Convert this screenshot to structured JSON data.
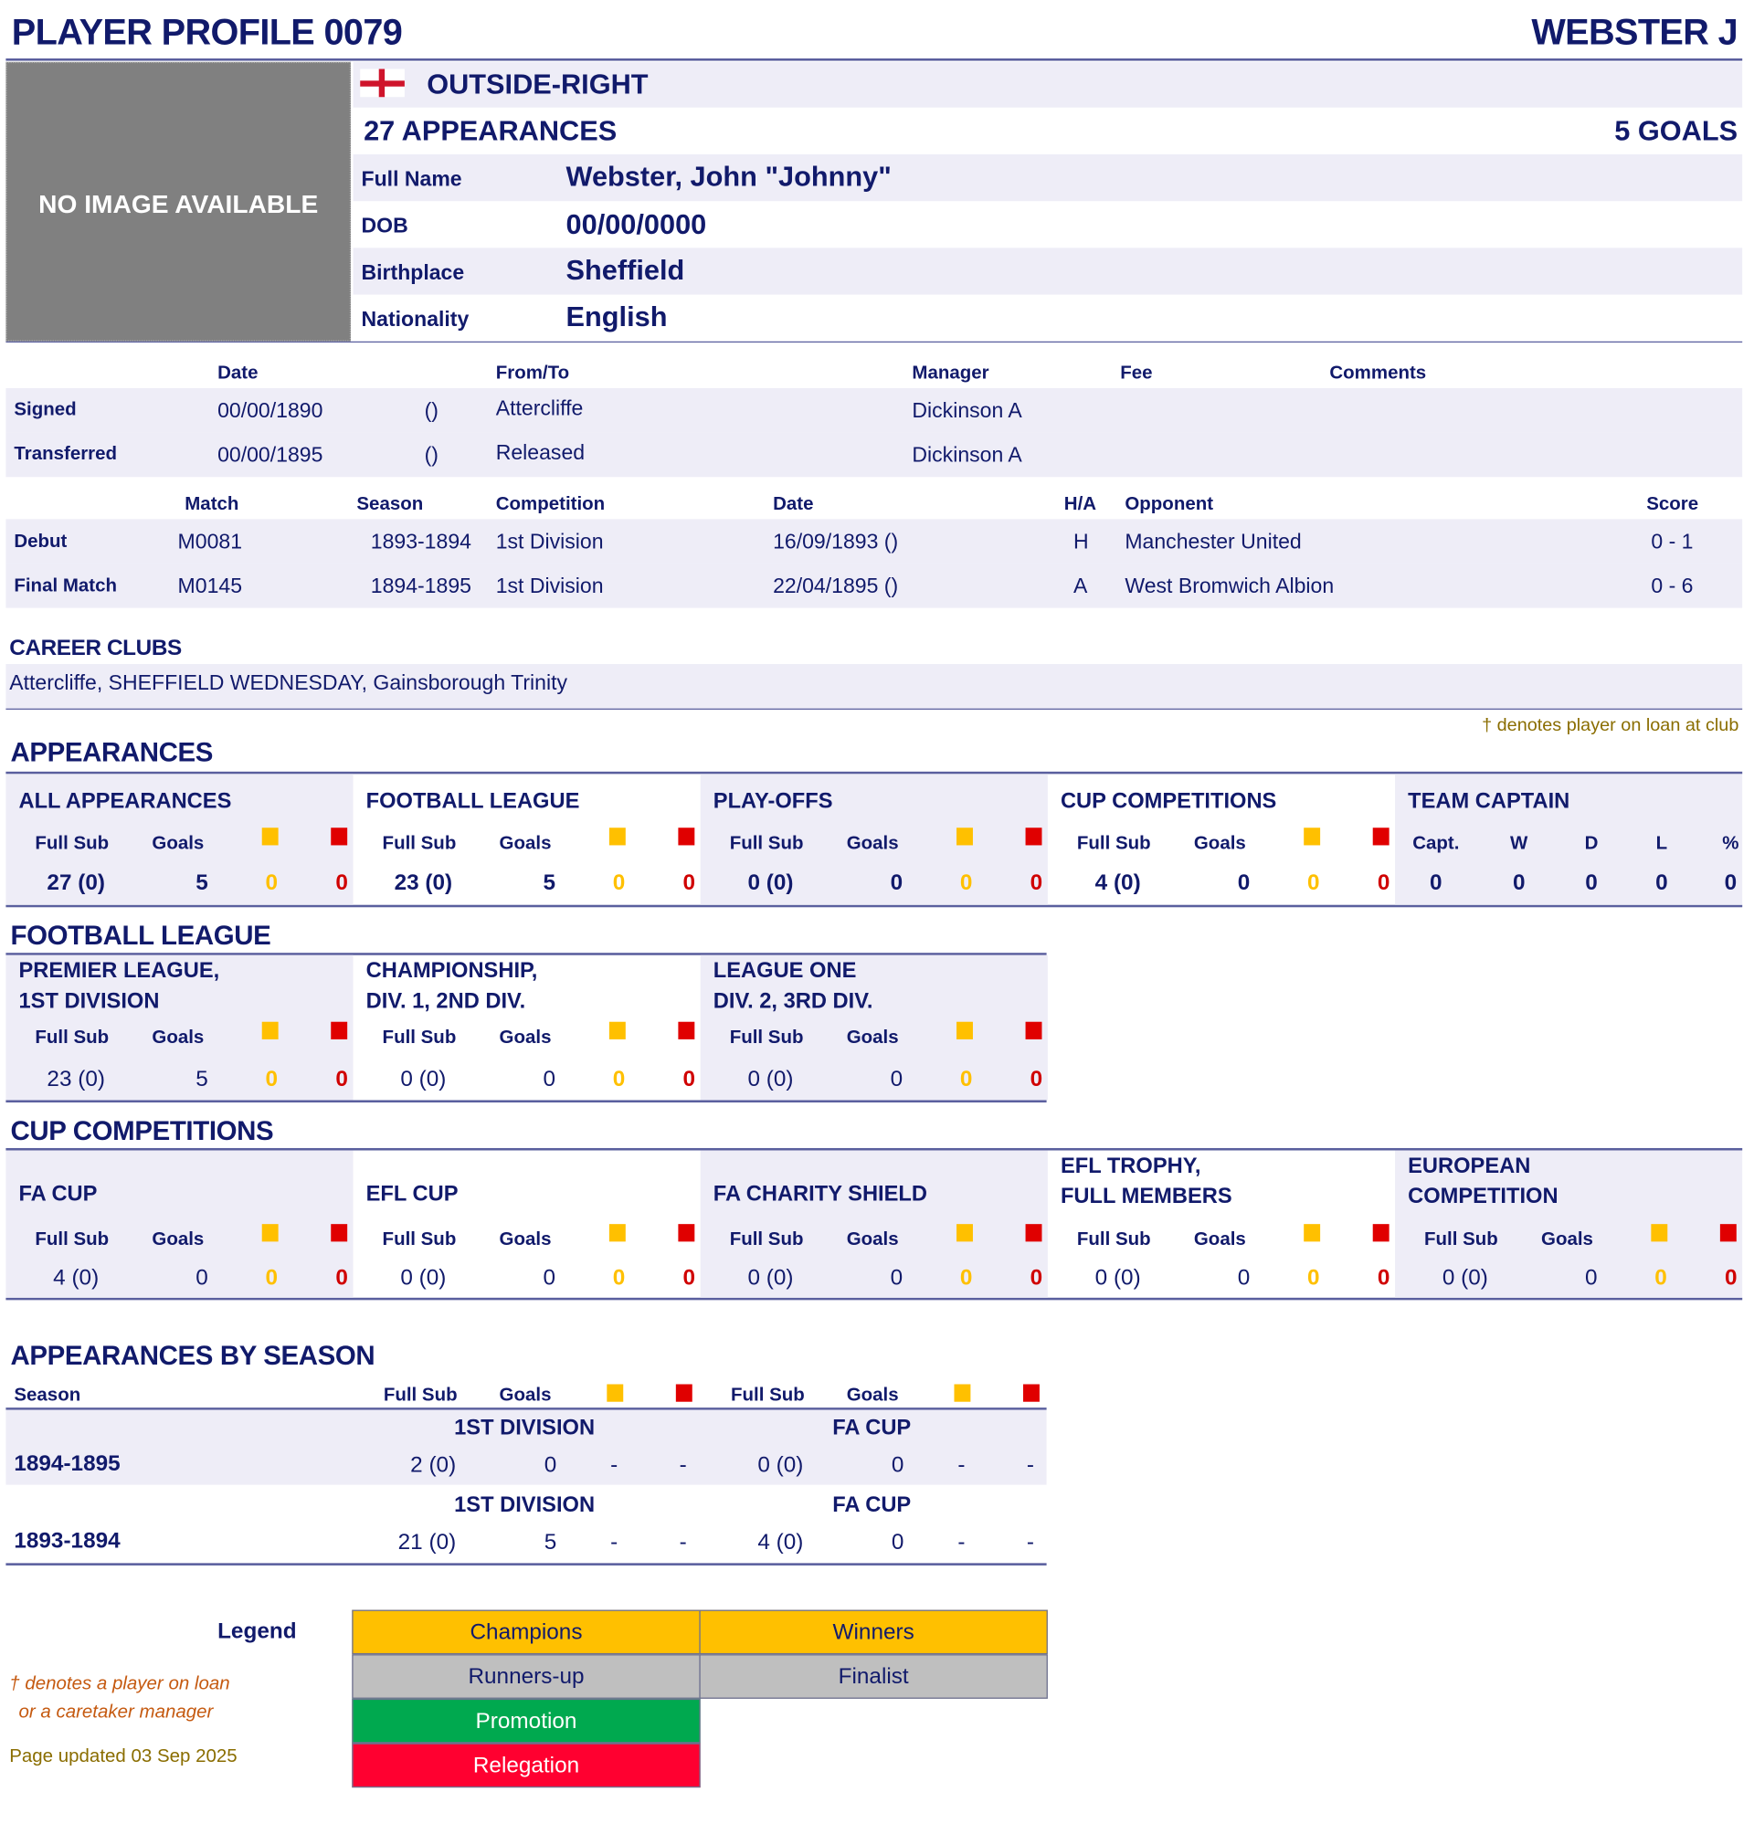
{
  "header": {
    "title": "PLAYER PROFILE 0079",
    "name": "WEBSTER J"
  },
  "profile": {
    "no_image": "NO IMAGE AVAILABLE",
    "flag_icon": "england-flag-icon",
    "position": "OUTSIDE-RIGHT",
    "appearances": "27 APPEARANCES",
    "goals": "5 GOALS",
    "fields": [
      {
        "label": "Full Name",
        "value": "Webster, John \"Johnny\""
      },
      {
        "label": "DOB",
        "value": "00/00/0000"
      },
      {
        "label": "Birthplace",
        "value": "Sheffield"
      },
      {
        "label": "Nationality",
        "value": "English"
      }
    ]
  },
  "transfers": {
    "headers": {
      "date": "Date",
      "club": "From/To",
      "manager": "Manager",
      "fee": "Fee",
      "comments": "Comments"
    },
    "rows": [
      {
        "label": "Signed",
        "date": "00/00/1890",
        "note": "()",
        "club": "Attercliffe",
        "manager": "Dickinson A",
        "fee": "",
        "comments": ""
      },
      {
        "label": "Transferred",
        "date": "00/00/1895",
        "note": "()",
        "club": "Released",
        "manager": "Dickinson A",
        "fee": "",
        "comments": ""
      }
    ]
  },
  "matches": {
    "headers": {
      "match": "Match",
      "season": "Season",
      "competition": "Competition",
      "date": "Date",
      "ha": "H/A",
      "opponent": "Opponent",
      "score": "Score"
    },
    "rows": [
      {
        "label": "Debut",
        "match": "M0081",
        "season": "1893-1894",
        "competition": "1st Division",
        "date": "16/09/1893 ()",
        "ha": "H",
        "opponent": "Manchester United",
        "score": "0 - 1"
      },
      {
        "label": "Final Match",
        "match": "M0145",
        "season": "1894-1895",
        "competition": "1st Division",
        "date": "22/04/1895 ()",
        "ha": "A",
        "opponent": "West Bromwich Albion",
        "score": "0 - 6"
      }
    ]
  },
  "career": {
    "heading": "CAREER CLUBS",
    "clubs": "Attercliffe, SHEFFIELD WEDNESDAY, Gainsborough Trinity",
    "loan_note": "† denotes player on loan at club"
  },
  "stat_headers": {
    "full_sub": "Full Sub",
    "goals": "Goals"
  },
  "colors": {
    "navy": "#111a6b",
    "yellow_card": "#ffc000",
    "red_card": "#e00000",
    "band": "#eeedf7"
  },
  "appearances": {
    "heading": "APPEARANCES",
    "blocks": [
      {
        "title": "ALL APPEARANCES",
        "full_sub": "27 (0)",
        "goals": "5",
        "yellow": "0",
        "red": "0"
      },
      {
        "title": "FOOTBALL LEAGUE",
        "full_sub": "23 (0)",
        "goals": "5",
        "yellow": "0",
        "red": "0"
      },
      {
        "title": "PLAY-OFFS",
        "full_sub": "0 (0)",
        "goals": "0",
        "yellow": "0",
        "red": "0"
      },
      {
        "title": "CUP COMPETITIONS",
        "full_sub": "4 (0)",
        "goals": "0",
        "yellow": "0",
        "red": "0"
      }
    ],
    "captain": {
      "title": "TEAM CAPTAIN",
      "headers": [
        "Capt.",
        "W",
        "D",
        "L",
        "%"
      ],
      "values": [
        "0",
        "0",
        "0",
        "0",
        "0"
      ]
    }
  },
  "football_league": {
    "heading": "FOOTBALL LEAGUE",
    "blocks": [
      {
        "title": "PREMIER LEAGUE,\n 1ST DIVISION",
        "full_sub": "23 (0)",
        "goals": "5",
        "yellow": "0",
        "red": "0"
      },
      {
        "title": "CHAMPIONSHIP,\nDIV. 1, 2ND DIV.",
        "full_sub": "0 (0)",
        "goals": "0",
        "yellow": "0",
        "red": "0"
      },
      {
        "title": "LEAGUE ONE\nDIV. 2, 3RD DIV.",
        "full_sub": "0 (0)",
        "goals": "0",
        "yellow": "0",
        "red": "0"
      }
    ]
  },
  "cups": {
    "heading": "CUP COMPETITIONS",
    "blocks": [
      {
        "title": "FA CUP",
        "full_sub": "4 (0)",
        "goals": "0",
        "yellow": "0",
        "red": "0"
      },
      {
        "title": "EFL CUP",
        "full_sub": "0 (0)",
        "goals": "0",
        "yellow": "0",
        "red": "0"
      },
      {
        "title": "FA CHARITY SHIELD",
        "full_sub": "0 (0)",
        "goals": "0",
        "yellow": "0",
        "red": "0"
      },
      {
        "title": "EFL TROPHY,\nFULL MEMBERS",
        "full_sub": "0 (0)",
        "goals": "0",
        "yellow": "0",
        "red": "0"
      },
      {
        "title": "EUROPEAN\nCOMPETITION",
        "full_sub": "0 (0)",
        "goals": "0",
        "yellow": "0",
        "red": "0"
      }
    ]
  },
  "by_season": {
    "heading": "APPEARANCES BY SEASON",
    "season_header": "Season",
    "rows": [
      {
        "season": "1894-1895",
        "comps": [
          {
            "name": "1ST DIVISION",
            "full_sub": "2 (0)",
            "goals": "0",
            "yellow": "-",
            "red": "-"
          },
          {
            "name": "FA CUP",
            "full_sub": "0 (0)",
            "goals": "0",
            "yellow": "-",
            "red": "-"
          }
        ]
      },
      {
        "season": "1893-1894",
        "comps": [
          {
            "name": "1ST DIVISION",
            "full_sub": "21 (0)",
            "goals": "5",
            "yellow": "-",
            "red": "-"
          },
          {
            "name": "FA CUP",
            "full_sub": "4 (0)",
            "goals": "0",
            "yellow": "-",
            "red": "-"
          }
        ]
      }
    ]
  },
  "legend": {
    "label": "Legend",
    "items": [
      {
        "label": "Champions",
        "color": "#ffc000"
      },
      {
        "label": "Winners",
        "color": "#ffc000"
      },
      {
        "label": "Runners-up",
        "color": "#bfbfbf"
      },
      {
        "label": "Finalist",
        "color": "#bfbfbf"
      },
      {
        "label": "Promotion",
        "color": "#00a94f"
      },
      {
        "label": "Relegation",
        "color": "#ff0030"
      }
    ],
    "loan_note_1": "† denotes a player on loan",
    "loan_note_2": "or a caretaker manager",
    "updated": "Page updated 03 Sep 2025"
  }
}
